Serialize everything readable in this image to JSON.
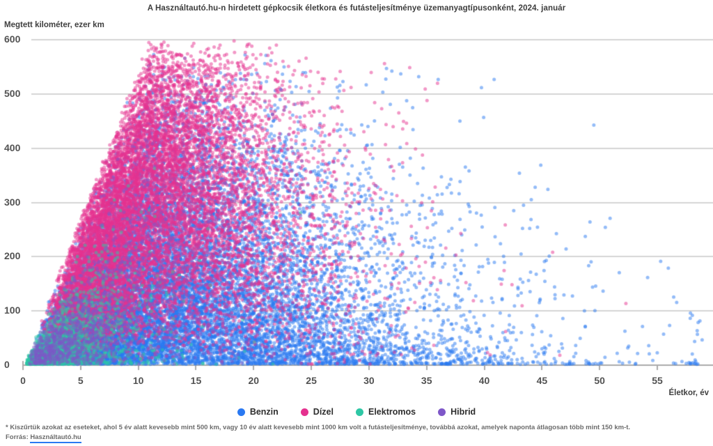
{
  "footnote": {
    "line1": "* Kiszűrtük azokat az eseteket, ahol 5 év alatt kevesebb mint 500 km, vagy 10 év alatt kevesebb mint 1000 km volt a futásteljesítménye, továbbá azokat, amelyek naponta átlagosan több mint 150 km-t.",
    "source_prefix": "Forrás: ",
    "source_link": "Használtautó.hu"
  },
  "colors": {
    "grid": "#d4d4d4",
    "axis": "#ababab",
    "tick_text": "#525252",
    "link_underline": "#2a79f2",
    "background": "#ffffff"
  },
  "chart_data": {
    "type": "scatter",
    "title": "A Használtautó.hu-n hirdetett gépkocsik életkora és futásteljesítménye üzemanyagtípusonként, 2024. január",
    "xlabel": "Életkor, év",
    "ylabel": "Megtett kilométer, ezer km",
    "xlim": [
      0,
      59.5
    ],
    "ylim": [
      0,
      600
    ],
    "x_ticks": [
      0,
      5,
      10,
      15,
      20,
      25,
      30,
      35,
      40,
      45,
      50,
      55
    ],
    "y_ticks": [
      0,
      100,
      200,
      300,
      400,
      500,
      600
    ],
    "grid": "horizontal",
    "legend_position": "bottom",
    "point_alpha": 0.5,
    "point_radius": 2.5,
    "seed": 7,
    "envelope_km_per_year": 54.75,
    "points_note": "Tens of thousands of overlapping listings; clouds are regenerated from these per-series distribution parameters (age ~ offset+gamma(shape,scale) years, mileage ~ envelope*beta(a,b)^(1+max(0,age-decay_start)/decay_span) thousand km, capped at 150 km/day).",
    "series": [
      {
        "name": "Benzin",
        "color": "#2a79f2",
        "count": 15000,
        "age_offset": 1.0,
        "age_shape": 2.2,
        "age_scale": 6.0,
        "km_beta": [
          1.15,
          2.6
        ],
        "decay_start": 16,
        "decay_span": 25
      },
      {
        "name": "Dízel",
        "color": "#e5318f",
        "count": 11500,
        "age_offset": 1.2,
        "age_shape": 3.2,
        "age_scale": 3.3,
        "km_beta": [
          2.3,
          1.9
        ],
        "decay_start": 15,
        "decay_span": 22
      },
      {
        "name": "Elektromos",
        "color": "#2ec7a5",
        "count": 2200,
        "age_offset": 0.3,
        "age_shape": 1.6,
        "age_scale": 2.2,
        "km_beta": [
          1.1,
          4.2
        ],
        "decay_start": 8,
        "decay_span": 10
      },
      {
        "name": "Hibrid",
        "color": "#7e57c8",
        "count": 1100,
        "age_offset": 0.5,
        "age_shape": 2.0,
        "age_scale": 3.0,
        "km_beta": [
          1.3,
          3.5
        ],
        "decay_start": 10,
        "decay_span": 15
      }
    ]
  }
}
